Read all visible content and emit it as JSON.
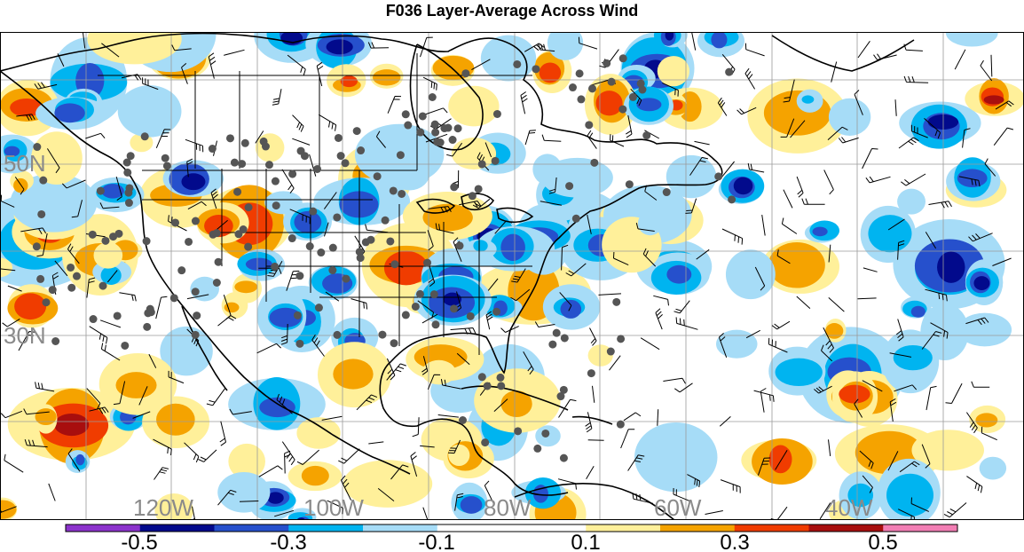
{
  "title": "F036 Layer-Average Across Wind",
  "map": {
    "lat_labels": [
      "50N",
      "30N"
    ],
    "lon_labels": [
      "120W",
      "100W",
      "80W",
      "60W",
      "40W"
    ],
    "station_marker_color": "#555555",
    "grid_color": "#9a9a9a",
    "coastline_color": "#000000"
  },
  "colorbar": {
    "colors": [
      "#8c33cc",
      "#020a8c",
      "#2650cc",
      "#00b4f0",
      "#a6dcf7",
      "#ffffff",
      "#ffffff",
      "#fff09a",
      "#f5a300",
      "#f03c00",
      "#a80e0e",
      "#f27eb4"
    ],
    "tick_labels": [
      "-0.5",
      "-0.3",
      "-0.1",
      "0.1",
      "0.3",
      "0.5"
    ]
  }
}
